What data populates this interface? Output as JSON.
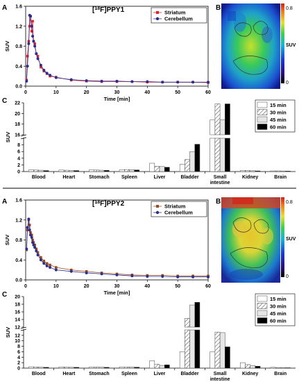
{
  "colors": {
    "striatum": "#e8202a",
    "striatum_ppy2": "#9a4a1e",
    "cerebellum": "#2b2f8c",
    "axis": "#000000",
    "bar_15": "#ffffff",
    "bar_30": "hatched",
    "bar_45": "#e6e6e6",
    "bar_60": "#000000"
  },
  "sections": [
    {
      "tracer_title_pre": "[",
      "tracer_sup": "18",
      "tracer_title_post": "F]PPY1",
      "panel_a_letter": "A",
      "panel_b_letter": "B",
      "panel_c_letter": "C",
      "colorbar": {
        "max_label": "0.8",
        "min_label": "0",
        "unit_label": "SUV"
      }
    },
    {
      "tracer_title_pre": "[",
      "tracer_sup": "18",
      "tracer_title_post": "F]PPY2",
      "panel_a_letter": "A",
      "panel_b_letter": "B",
      "panel_c_letter": "C",
      "colorbar": {
        "max_label": "0.8",
        "min_label": "0",
        "unit_label": "SUV"
      }
    }
  ],
  "chart_data": [
    {
      "type": "line",
      "title": "[18F]PPY1",
      "xlabel": "Time [min]",
      "ylabel": "SUV",
      "xlim": [
        0,
        60
      ],
      "ylim": [
        0,
        1.6
      ],
      "xticks": [
        "0",
        "10",
        "20",
        "30",
        "40",
        "50",
        "60"
      ],
      "yticks": [
        "0.0",
        "0.4",
        "0.8",
        "1.2",
        "1.6"
      ],
      "legend_position": "top-right",
      "series": [
        {
          "name": "Striatum",
          "x": [
            0.3,
            0.6,
            1,
            1.3,
            1.6,
            2,
            2.3,
            2.6,
            3,
            3.5,
            4,
            5,
            6,
            7,
            8,
            10,
            15,
            20,
            25,
            30,
            35,
            40,
            45,
            50,
            55,
            60
          ],
          "y": [
            0.12,
            0.6,
            0.9,
            1.2,
            1.4,
            1.1,
            1.3,
            0.9,
            0.85,
            0.65,
            0.6,
            0.38,
            0.3,
            0.25,
            0.2,
            0.18,
            0.12,
            0.1,
            0.09,
            0.09,
            0.09,
            0.08,
            0.08,
            0.08,
            0.08,
            0.07
          ]
        },
        {
          "name": "Cerebellum",
          "x": [
            0.3,
            0.6,
            1,
            1.3,
            1.6,
            2,
            2.3,
            2.6,
            3,
            3.5,
            4,
            5,
            6,
            7,
            8,
            10,
            15,
            20,
            25,
            30,
            35,
            40,
            45,
            50,
            55,
            60
          ],
          "y": [
            0.1,
            0.4,
            0.85,
            1.42,
            1.4,
            1.2,
            1.0,
            0.9,
            0.8,
            0.65,
            0.55,
            0.42,
            0.32,
            0.26,
            0.22,
            0.17,
            0.13,
            0.11,
            0.1,
            0.1,
            0.09,
            0.09,
            0.08,
            0.08,
            0.08,
            0.08
          ]
        }
      ]
    },
    {
      "type": "bar",
      "ylabel": "SUV",
      "ylim_lower": [
        0,
        10
      ],
      "ylim_upper": [
        16,
        22
      ],
      "yticks_lower": [
        "0",
        "2",
        "4",
        "6",
        "8"
      ],
      "yticks_upper": [
        "16",
        "18",
        "20",
        "22"
      ],
      "categories": [
        "Blood",
        "Heart",
        "Stomach",
        "Spleen",
        "Liver",
        "Bladder",
        "Small intestine",
        "Kidney",
        "Brain"
      ],
      "legend_position": "top-right",
      "series": [
        {
          "name": "15 min",
          "values": [
            0.5,
            0.45,
            0.5,
            0.5,
            2.5,
            2.2,
            18.8,
            0.35,
            0.2
          ]
        },
        {
          "name": "30 min",
          "values": [
            0.45,
            0.4,
            0.45,
            0.6,
            1.6,
            3.6,
            21.8,
            0.3,
            0.2
          ]
        },
        {
          "name": "45 min",
          "values": [
            0.4,
            0.35,
            0.4,
            0.55,
            1.5,
            6.0,
            18.8,
            0.25,
            0.18
          ]
        },
        {
          "name": "60 min",
          "values": [
            0.3,
            0.3,
            0.35,
            0.5,
            1.3,
            8.2,
            21.8,
            0.2,
            0.15
          ]
        }
      ]
    },
    {
      "type": "line",
      "title": "[18F]PPY2",
      "xlabel": "Time [min]",
      "ylabel": "SUV",
      "xlim": [
        0,
        60
      ],
      "ylim": [
        0,
        1.6
      ],
      "xticks": [
        "0",
        "10",
        "20",
        "30",
        "40",
        "50",
        "60"
      ],
      "yticks": [
        "0.0",
        "0.4",
        "0.8",
        "1.2",
        "1.6"
      ],
      "legend_position": "top-right",
      "series": [
        {
          "name": "Striatum",
          "x": [
            0.3,
            0.6,
            1,
            1.3,
            1.6,
            2,
            2.3,
            2.6,
            3,
            3.5,
            4,
            5,
            6,
            7,
            8,
            10,
            15,
            20,
            25,
            30,
            35,
            40,
            45,
            50,
            55,
            60
          ],
          "y": [
            0.6,
            1.0,
            1.2,
            1.1,
            0.95,
            0.9,
            0.8,
            0.75,
            0.7,
            0.62,
            0.55,
            0.45,
            0.38,
            0.33,
            0.3,
            0.25,
            0.2,
            0.17,
            0.14,
            0.12,
            0.1,
            0.09,
            0.09,
            0.08,
            0.08,
            0.08
          ]
        },
        {
          "name": "Cerebellum",
          "x": [
            0.3,
            0.6,
            1,
            1.3,
            1.6,
            2,
            2.3,
            2.6,
            3,
            3.5,
            4,
            5,
            6,
            7,
            8,
            10,
            15,
            20,
            25,
            30,
            35,
            40,
            45,
            50,
            55,
            60
          ],
          "y": [
            0.62,
            1.05,
            1.22,
            1.0,
            0.9,
            0.85,
            0.75,
            0.7,
            0.65,
            0.58,
            0.5,
            0.4,
            0.33,
            0.28,
            0.25,
            0.2,
            0.17,
            0.14,
            0.12,
            0.1,
            0.08,
            0.07,
            0.07,
            0.06,
            0.06,
            0.06
          ]
        }
      ]
    },
    {
      "type": "bar",
      "ylabel": "SUV",
      "ylim_lower": [
        0,
        14
      ],
      "ylim_upper": [
        12,
        20
      ],
      "yticks_lower": [
        "0",
        "2",
        "4",
        "6",
        "8",
        "10",
        "12"
      ],
      "yticks_upper": [
        "12",
        "14",
        "16",
        "18",
        "20"
      ],
      "categories": [
        "Blood",
        "Heart",
        "Stomach",
        "Spleen",
        "Liver",
        "Bladder",
        "Small intestine",
        "Kidney",
        "Brain"
      ],
      "legend_position": "top-right",
      "series": [
        {
          "name": "15 min",
          "values": [
            0.5,
            0.45,
            0.4,
            0.45,
            2.7,
            6.0,
            6.0,
            2.0,
            0.3
          ]
        },
        {
          "name": "30 min",
          "values": [
            0.4,
            0.35,
            0.4,
            0.4,
            1.4,
            14.3,
            13.2,
            1.3,
            0.2
          ]
        },
        {
          "name": "45 min",
          "values": [
            0.35,
            0.3,
            0.35,
            0.4,
            1.0,
            17.8,
            13.0,
            0.9,
            0.15
          ]
        },
        {
          "name": "60 min",
          "values": [
            0.3,
            0.3,
            0.3,
            0.35,
            1.2,
            18.5,
            7.8,
            0.7,
            0.15
          ]
        }
      ]
    }
  ]
}
